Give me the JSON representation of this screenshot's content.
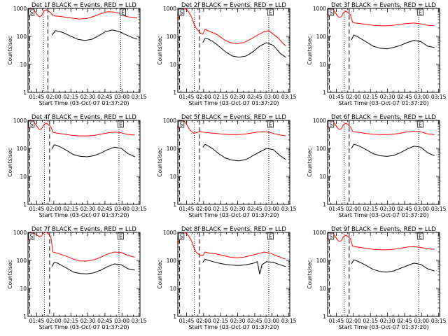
{
  "page": {
    "background": "#ffffff",
    "colors": {
      "events": "#000000",
      "lld": "#ff0000",
      "axes": "#000000"
    }
  },
  "common": {
    "ylabel": "Counts/sec",
    "xlabel": "Start Time (03-Oct-07 01:37:20)",
    "title_suffix": "BLACK = Events, RED = LLD",
    "y_ticks": [
      1,
      10,
      100,
      1000
    ],
    "y_tick_labels": [
      "1",
      "10",
      "100",
      "1000"
    ],
    "x_tick_labels": [
      "01:45",
      "02:00",
      "02:15",
      "02:30",
      "02:45",
      "03:00",
      "03:15"
    ],
    "x_tick_minutes": [
      7.67,
      22.67,
      37.67,
      52.67,
      67.67,
      82.67,
      97.67
    ],
    "xlim_minutes": [
      0,
      98.5
    ],
    "ylim": [
      1,
      1000
    ],
    "yscale": "log",
    "marker_labels": [
      "S",
      "E"
    ]
  },
  "chart_data": [
    {
      "type": "line",
      "title": "Det 1f",
      "ylabel": "Counts/sec",
      "xlabel": "Start Time (03-Oct-07 01:37:20)",
      "series": [
        {
          "name": "Events",
          "color": "#000000",
          "x": [
            21,
            24,
            28,
            32,
            38,
            44,
            50,
            56,
            62,
            68,
            74,
            80,
            86,
            92,
            96
          ],
          "values": [
            110,
            160,
            150,
            130,
            100,
            78,
            72,
            78,
            105,
            145,
            170,
            150,
            115,
            90,
            80
          ]
        },
        {
          "name": "LLD",
          "color": "#ff0000",
          "x": [
            0,
            2,
            4,
            6,
            8,
            10,
            12,
            14,
            16,
            18,
            20,
            22,
            24,
            28,
            34,
            40,
            46,
            52,
            58,
            64,
            70,
            76,
            80,
            84,
            88,
            92,
            96
          ],
          "values": [
            600,
            900,
            1000,
            800,
            600,
            500,
            550,
            800,
            900,
            800,
            700,
            560,
            540,
            520,
            480,
            440,
            420,
            440,
            520,
            650,
            760,
            740,
            680,
            560,
            500,
            480,
            460
          ]
        }
      ],
      "vlines_dashed": [
        1.5,
        17.5
      ],
      "vlines_dotted": [
        13.5,
        81.5
      ],
      "markers": [
        {
          "label": "S",
          "x": 0.5
        },
        {
          "label": "E",
          "x": 81
        }
      ]
    },
    {
      "type": "line",
      "title": "Det 2f",
      "ylabel": "Counts/sec",
      "xlabel": "Start Time (03-Oct-07 01:37:20)",
      "series": [
        {
          "name": "Events",
          "color": "#000000",
          "x": [
            22,
            24,
            27,
            31,
            36,
            42,
            48,
            54,
            60,
            66,
            72,
            78,
            84,
            90,
            95
          ],
          "values": [
            60,
            85,
            80,
            65,
            45,
            28,
            20,
            18,
            20,
            28,
            45,
            60,
            48,
            25,
            18
          ]
        },
        {
          "name": "LLD",
          "color": "#ff0000",
          "x": [
            0,
            2,
            4,
            6,
            8,
            10,
            12,
            14,
            16,
            18,
            20,
            22,
            24,
            28,
            34,
            40,
            46,
            52,
            58,
            64,
            70,
            76,
            80,
            84,
            88,
            92,
            95
          ],
          "values": [
            400,
            600,
            900,
            1000,
            900,
            700,
            500,
            300,
            200,
            160,
            130,
            120,
            180,
            150,
            120,
            80,
            60,
            55,
            60,
            80,
            110,
            150,
            160,
            120,
            90,
            60,
            45
          ]
        }
      ],
      "vlines_dashed": [
        1.5,
        19
      ],
      "vlines_dotted": [
        14.5,
        80
      ],
      "markers": [
        {
          "label": "S",
          "x": 0.5
        },
        {
          "label": "E",
          "x": 79
        }
      ]
    },
    {
      "type": "line",
      "title": "Det 3f",
      "ylabel": "Counts/sec",
      "xlabel": "Start Time (03-Oct-07 01:37:20)",
      "series": [
        {
          "name": "Events",
          "color": "#000000",
          "x": [
            21,
            23,
            26,
            30,
            35,
            40,
            46,
            52,
            58,
            64,
            70,
            76,
            82,
            88,
            94
          ],
          "values": [
            75,
            110,
            100,
            80,
            60,
            45,
            38,
            36,
            40,
            48,
            60,
            72,
            65,
            45,
            40
          ]
        },
        {
          "name": "LLD",
          "color": "#ff0000",
          "x": [
            0,
            2,
            4,
            6,
            8,
            10,
            12,
            14,
            16,
            18,
            20,
            22,
            24,
            28,
            34,
            40,
            46,
            52,
            58,
            64,
            70,
            76,
            82,
            88,
            94
          ],
          "values": [
            500,
            900,
            1000,
            800,
            600,
            480,
            500,
            700,
            800,
            700,
            600,
            320,
            300,
            290,
            270,
            250,
            240,
            240,
            250,
            270,
            290,
            300,
            280,
            250,
            240
          ]
        }
      ],
      "vlines_dashed": [
        1.5,
        19
      ],
      "vlines_dotted": [
        14.5,
        80
      ],
      "markers": [
        {
          "label": "S",
          "x": 0.5
        },
        {
          "label": "E",
          "x": 79
        }
      ]
    },
    {
      "type": "line",
      "title": "Det 4f",
      "ylabel": "Counts/sec",
      "xlabel": "Start Time (03-Oct-07 01:37:20)",
      "series": [
        {
          "name": "Events",
          "color": "#000000",
          "x": [
            21,
            23,
            26,
            30,
            35,
            40,
            46,
            52,
            58,
            64,
            70,
            76,
            82,
            88,
            94
          ],
          "values": [
            95,
            135,
            125,
            105,
            80,
            60,
            52,
            50,
            55,
            68,
            90,
            110,
            100,
            65,
            50
          ]
        },
        {
          "name": "LLD",
          "color": "#ff0000",
          "x": [
            0,
            2,
            4,
            6,
            8,
            10,
            12,
            14,
            16,
            18,
            20,
            22,
            24,
            28,
            34,
            40,
            46,
            52,
            58,
            64,
            70,
            76,
            82,
            88,
            94
          ],
          "values": [
            500,
            900,
            1000,
            800,
            600,
            480,
            500,
            700,
            800,
            700,
            600,
            380,
            360,
            340,
            310,
            290,
            280,
            280,
            290,
            320,
            360,
            380,
            360,
            310,
            300
          ]
        }
      ],
      "vlines_dashed": [
        1.5,
        19
      ],
      "vlines_dotted": [
        14.5,
        80
      ],
      "markers": [
        {
          "label": "S",
          "x": 0.5
        },
        {
          "label": "E",
          "x": 79
        }
      ]
    },
    {
      "type": "line",
      "title": "Det 5f",
      "ylabel": "Counts/sec",
      "xlabel": "Start Time (03-Oct-07 01:37:20)",
      "series": [
        {
          "name": "Events",
          "color": "#000000",
          "x": [
            22,
            24,
            27,
            31,
            36,
            42,
            48,
            54,
            60,
            66,
            72,
            78,
            84,
            90,
            95
          ],
          "values": [
            110,
            140,
            120,
            95,
            65,
            45,
            38,
            36,
            40,
            55,
            75,
            100,
            90,
            55,
            40
          ]
        },
        {
          "name": "LLD",
          "color": "#ff0000",
          "x": [
            0,
            2,
            4,
            6,
            8,
            10,
            12,
            14,
            16,
            18,
            20,
            22,
            24,
            28,
            34,
            40,
            46,
            52,
            58,
            64,
            70,
            76,
            82,
            88,
            95
          ],
          "values": [
            500,
            800,
            1000,
            900,
            700,
            500,
            400,
            350,
            360,
            380,
            400,
            380,
            370,
            360,
            340,
            320,
            310,
            310,
            320,
            350,
            380,
            400,
            360,
            310,
            280
          ]
        }
      ],
      "vlines_dashed": [
        1.5,
        19
      ],
      "vlines_dotted": [
        14.5,
        80
      ],
      "markers": [
        {
          "label": "S",
          "x": 0.5
        },
        {
          "label": "E",
          "x": 79
        }
      ]
    },
    {
      "type": "line",
      "title": "Det 6f",
      "ylabel": "Counts/sec",
      "xlabel": "Start Time (03-Oct-07 01:37:20)",
      "series": [
        {
          "name": "Events",
          "color": "#000000",
          "x": [
            21,
            23,
            26,
            30,
            35,
            40,
            46,
            52,
            58,
            64,
            70,
            76,
            82,
            88,
            94
          ],
          "values": [
            100,
            140,
            130,
            110,
            85,
            65,
            55,
            52,
            56,
            70,
            95,
            120,
            110,
            70,
            55
          ]
        },
        {
          "name": "LLD",
          "color": "#ff0000",
          "x": [
            0,
            2,
            4,
            6,
            8,
            10,
            12,
            14,
            16,
            18,
            20,
            22,
            24,
            28,
            34,
            40,
            46,
            52,
            58,
            64,
            70,
            76,
            82,
            88,
            94
          ],
          "values": [
            500,
            900,
            1000,
            800,
            600,
            480,
            500,
            700,
            800,
            700,
            600,
            400,
            390,
            370,
            340,
            320,
            310,
            310,
            320,
            350,
            390,
            410,
            390,
            330,
            310
          ]
        }
      ],
      "vlines_dashed": [
        1.5,
        19
      ],
      "vlines_dotted": [
        14.5,
        80
      ],
      "markers": [
        {
          "label": "S",
          "x": 0.5
        },
        {
          "label": "E",
          "x": 79
        }
      ]
    },
    {
      "type": "line",
      "title": "Det 7f",
      "ylabel": "Counts/sec",
      "xlabel": "Start Time (03-Oct-07 01:37:20)",
      "series": [
        {
          "name": "Events",
          "color": "#000000",
          "x": [
            21,
            23,
            26,
            30,
            35,
            40,
            46,
            52,
            58,
            64,
            70,
            76,
            82,
            88,
            94
          ],
          "values": [
            60,
            85,
            80,
            65,
            50,
            38,
            34,
            33,
            36,
            45,
            60,
            75,
            70,
            50,
            45
          ]
        },
        {
          "name": "LLD",
          "color": "#ff0000",
          "x": [
            0,
            2,
            4,
            6,
            8,
            10,
            12,
            14,
            16,
            18,
            20,
            22,
            24,
            28,
            34,
            40,
            46,
            52,
            58,
            64,
            70,
            76,
            82,
            88,
            94
          ],
          "values": [
            500,
            900,
            1000,
            900,
            800,
            700,
            750,
            1000,
            1000,
            900,
            700,
            200,
            190,
            170,
            140,
            110,
            95,
            95,
            105,
            130,
            170,
            200,
            190,
            150,
            130
          ]
        }
      ],
      "vlines_dashed": [
        1.5,
        19
      ],
      "vlines_dotted": [
        14.5,
        80
      ],
      "markers": [
        {
          "label": "S",
          "x": 0.5
        },
        {
          "label": "E",
          "x": 79
        }
      ]
    },
    {
      "type": "line",
      "title": "Det 8f",
      "ylabel": "Counts/sec",
      "xlabel": "Start Time (03-Oct-07 01:37:20)",
      "series": [
        {
          "name": "Events",
          "color": "#000000",
          "x": [
            22,
            24,
            27,
            31,
            36,
            42,
            48,
            54,
            60,
            66,
            70,
            72,
            74,
            78,
            84,
            90,
            95
          ],
          "values": [
            85,
            110,
            100,
            90,
            80,
            72,
            68,
            66,
            70,
            78,
            90,
            32,
            70,
            90,
            85,
            70,
            60
          ]
        },
        {
          "name": "LLD",
          "color": "#ff0000",
          "x": [
            0,
            2,
            4,
            6,
            8,
            10,
            12,
            14,
            16,
            18,
            20,
            22,
            24,
            28,
            34,
            40,
            46,
            52,
            58,
            64,
            70,
            76,
            82,
            88,
            95
          ],
          "values": [
            400,
            600,
            900,
            1000,
            900,
            700,
            500,
            300,
            200,
            170,
            150,
            150,
            200,
            180,
            170,
            150,
            130,
            125,
            130,
            150,
            170,
            200,
            180,
            140,
            110
          ]
        }
      ],
      "vlines_dashed": [
        1.5,
        19
      ],
      "vlines_dotted": [
        14.5,
        80
      ],
      "markers": [
        {
          "label": "S",
          "x": 0.5
        },
        {
          "label": "E",
          "x": 79
        }
      ]
    },
    {
      "type": "line",
      "title": "Det 9f",
      "ylabel": "Counts/sec",
      "xlabel": "Start Time (03-Oct-07 01:37:20)",
      "series": [
        {
          "name": "Events",
          "color": "#000000",
          "x": [
            21,
            23,
            26,
            30,
            35,
            40,
            46,
            52,
            58,
            64,
            70,
            76,
            82,
            88,
            94
          ],
          "values": [
            75,
            105,
            95,
            80,
            62,
            48,
            40,
            38,
            42,
            52,
            65,
            80,
            72,
            50,
            42
          ]
        },
        {
          "name": "LLD",
          "color": "#ff0000",
          "x": [
            0,
            2,
            4,
            6,
            8,
            10,
            12,
            14,
            16,
            18,
            20,
            22,
            24,
            28,
            34,
            40,
            46,
            52,
            58,
            64,
            70,
            76,
            82,
            88,
            94
          ],
          "values": [
            500,
            900,
            1000,
            800,
            600,
            480,
            500,
            700,
            800,
            700,
            600,
            320,
            310,
            295,
            270,
            250,
            240,
            240,
            250,
            270,
            300,
            310,
            290,
            260,
            250
          ]
        }
      ],
      "vlines_dashed": [
        1.5,
        19
      ],
      "vlines_dotted": [
        14.5,
        80
      ],
      "markers": [
        {
          "label": "S",
          "x": 0.5
        },
        {
          "label": "E",
          "x": 79
        }
      ]
    }
  ]
}
